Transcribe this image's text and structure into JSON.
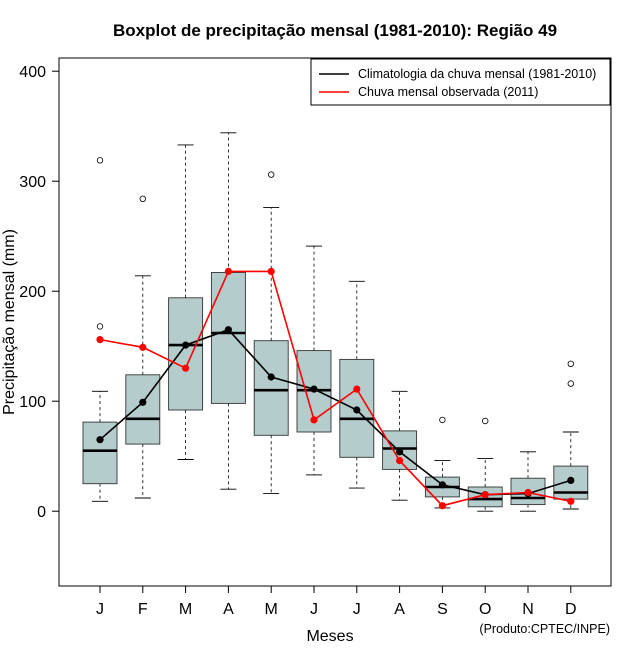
{
  "chart_data": {
    "type": "boxplot",
    "title": "Boxplot de precipitação mensal (1981-2010): Região 49",
    "xlabel": "Meses",
    "ylabel": "Precipitação mensal (mm)",
    "ylim": [
      -68,
      412
    ],
    "yticks": [
      0,
      100,
      200,
      300,
      400
    ],
    "categories": [
      "J",
      "F",
      "M",
      "A",
      "M",
      "J",
      "J",
      "A",
      "S",
      "O",
      "N",
      "D"
    ],
    "box_color": "#b5cccc",
    "boxes": [
      {
        "whisker_low": 9,
        "q1": 25,
        "median": 55,
        "q3": 81,
        "whisker_high": 109,
        "outliers": [
          168,
          319
        ]
      },
      {
        "whisker_low": 12,
        "q1": 61,
        "median": 84,
        "q3": 124,
        "whisker_high": 214,
        "outliers": [
          284
        ]
      },
      {
        "whisker_low": 47,
        "q1": 92,
        "median": 151,
        "q3": 194,
        "whisker_high": 333,
        "outliers": []
      },
      {
        "whisker_low": 20,
        "q1": 98,
        "median": 162,
        "q3": 217,
        "whisker_high": 344,
        "outliers": []
      },
      {
        "whisker_low": 16,
        "q1": 69,
        "median": 110,
        "q3": 155,
        "whisker_high": 276,
        "outliers": [
          306
        ]
      },
      {
        "whisker_low": 33,
        "q1": 72,
        "median": 110,
        "q3": 146,
        "whisker_high": 241,
        "outliers": []
      },
      {
        "whisker_low": 21,
        "q1": 49,
        "median": 84,
        "q3": 138,
        "whisker_high": 209,
        "outliers": []
      },
      {
        "whisker_low": 10,
        "q1": 38,
        "median": 57,
        "q3": 73,
        "whisker_high": 109,
        "outliers": []
      },
      {
        "whisker_low": 3,
        "q1": 13,
        "median": 22,
        "q3": 31,
        "whisker_high": 46,
        "outliers": [
          83
        ]
      },
      {
        "whisker_low": 0,
        "q1": 4,
        "median": 11,
        "q3": 22,
        "whisker_high": 48,
        "outliers": [
          82
        ]
      },
      {
        "whisker_low": 0,
        "q1": 6,
        "median": 12,
        "q3": 30,
        "whisker_high": 54,
        "outliers": []
      },
      {
        "whisker_low": 2,
        "q1": 11,
        "median": 17,
        "q3": 41,
        "whisker_high": 72,
        "outliers": [
          116,
          134
        ]
      }
    ],
    "series": [
      {
        "name": "Climatologia da chuva mensal (1981-2010)",
        "color": "#000000",
        "values": [
          65,
          99,
          151,
          165,
          122,
          111,
          92,
          54,
          24,
          15,
          16,
          28
        ]
      },
      {
        "name": "Chuva mensal observada (2011)",
        "color": "#ff0000",
        "values": [
          156,
          149,
          130,
          218,
          218,
          83,
          111,
          46,
          5,
          15,
          17,
          9
        ]
      }
    ],
    "legend_position": "top-right",
    "credit": "(Produto:CPTEC/INPE)"
  }
}
